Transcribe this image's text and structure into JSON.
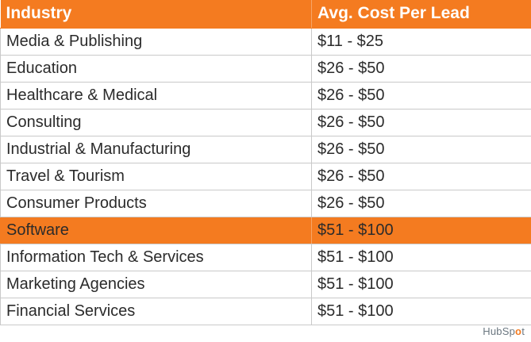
{
  "chart_data": {
    "type": "table",
    "columns": [
      "Industry",
      "Avg. Cost Per Lead"
    ],
    "rows": [
      {
        "industry": "Media & Publishing",
        "cost": "$11 - $25"
      },
      {
        "industry": "Education",
        "cost": "$26 - $50"
      },
      {
        "industry": "Healthcare & Medical",
        "cost": "$26 - $50"
      },
      {
        "industry": "Consulting",
        "cost": "$26 - $50"
      },
      {
        "industry": "Industrial & Manufacturing",
        "cost": "$26 - $50"
      },
      {
        "industry": "Travel & Tourism",
        "cost": "$26 - $50"
      },
      {
        "industry": "Consumer Products",
        "cost": "$26 - $50"
      },
      {
        "industry": "Software",
        "cost": "$51 - $100",
        "highlight": true
      },
      {
        "industry": "Information Tech & Services",
        "cost": "$51 - $100"
      },
      {
        "industry": "Marketing Agencies",
        "cost": "$51 - $100"
      },
      {
        "industry": "Financial Services",
        "cost": "$51 - $100"
      }
    ],
    "colors": {
      "header": "#f47b20",
      "highlight": "#f47b20",
      "text": "#2b2b2b"
    }
  },
  "branding": {
    "logo_prefix": "HubSp",
    "logo_sprocket": "o",
    "logo_suffix": "t"
  }
}
